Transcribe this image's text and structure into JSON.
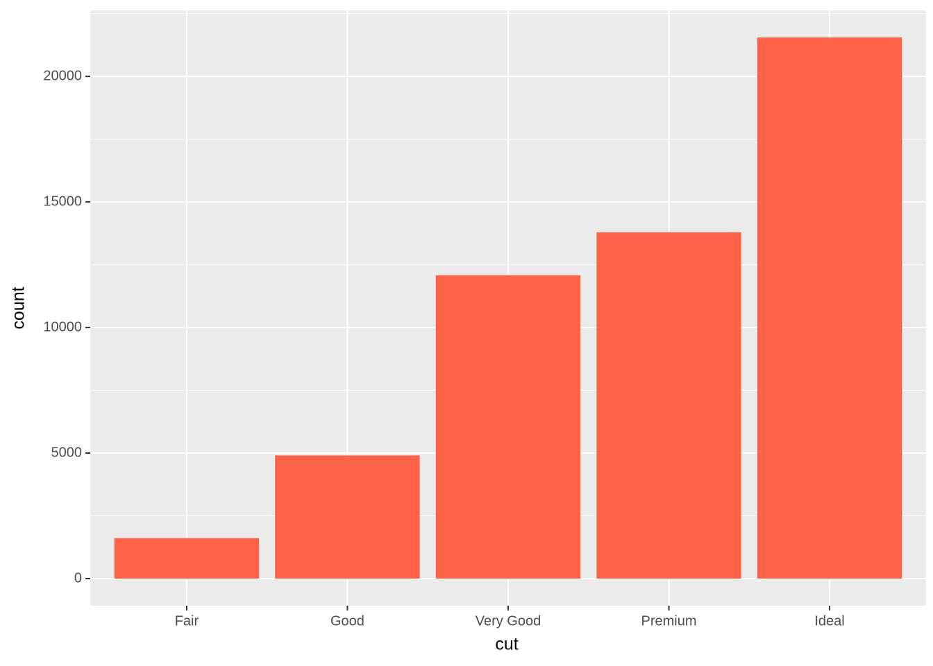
{
  "chart_data": {
    "type": "bar",
    "x_label": "cut",
    "y_label": "count",
    "categories": [
      "Fair",
      "Good",
      "Very Good",
      "Premium",
      "Ideal"
    ],
    "values": [
      1610,
      4906,
      12082,
      13791,
      21551
    ],
    "color": "#ff6347",
    "ylim": [
      -1077.55,
      22628.55
    ],
    "yticks": [
      0,
      5000,
      10000,
      15000,
      20000
    ],
    "minor_yticks": [
      2500,
      7500,
      12500,
      17500,
      22500
    ],
    "grid": true
  }
}
